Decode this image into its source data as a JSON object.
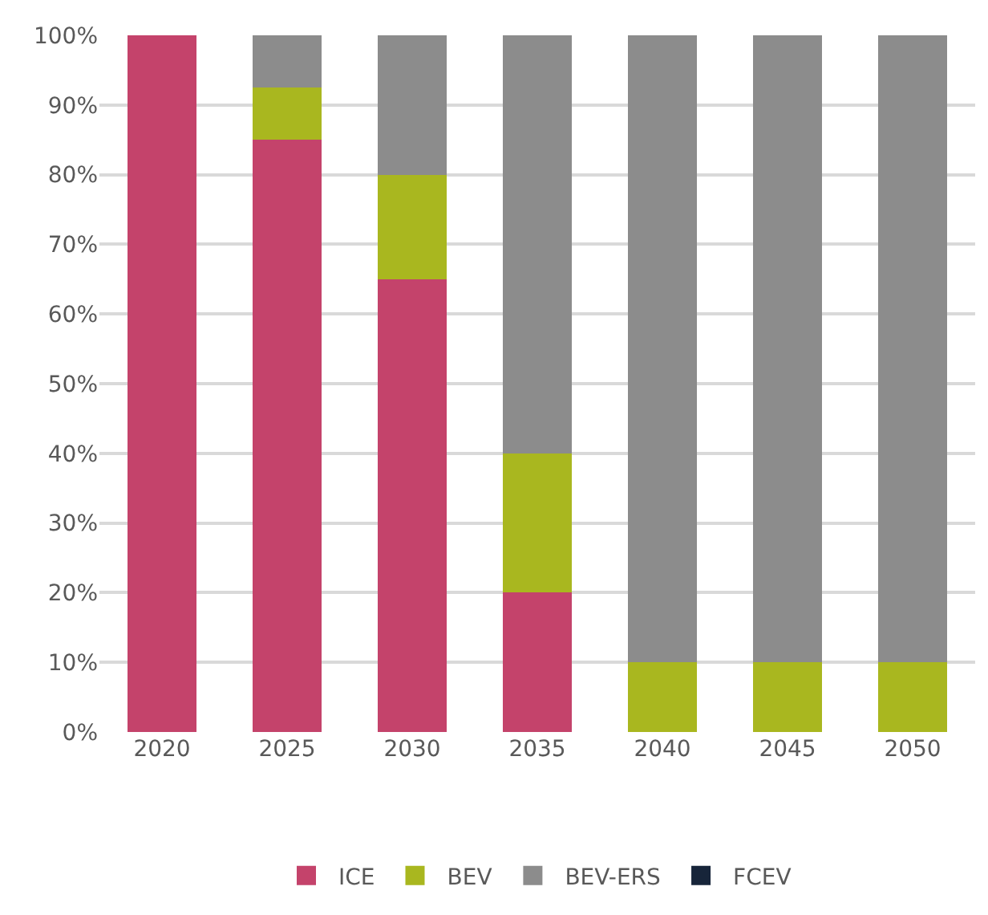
{
  "chart_data": {
    "type": "bar",
    "stacked": true,
    "categories": [
      "2020",
      "2025",
      "2030",
      "2035",
      "2040",
      "2045",
      "2050"
    ],
    "series": [
      {
        "name": "ICE",
        "color": "#c4436b",
        "values": [
          100,
          85,
          65,
          20,
          0,
          0,
          0
        ]
      },
      {
        "name": "BEV",
        "color": "#a9b71f",
        "values": [
          0,
          7.5,
          15,
          20,
          10,
          10,
          10
        ]
      },
      {
        "name": "BEV-ERS",
        "color": "#8c8c8c",
        "values": [
          0,
          7.5,
          20,
          60,
          90,
          90,
          90
        ]
      },
      {
        "name": "FCEV",
        "color": "#17253a",
        "values": [
          0,
          0,
          0,
          0,
          0,
          0,
          0
        ]
      }
    ],
    "ylim": [
      0,
      100
    ],
    "yticks": [
      {
        "value": 0,
        "label": "0%"
      },
      {
        "value": 10,
        "label": "10%"
      },
      {
        "value": 20,
        "label": "20%"
      },
      {
        "value": 30,
        "label": "30%"
      },
      {
        "value": 40,
        "label": "40%"
      },
      {
        "value": 50,
        "label": "50%"
      },
      {
        "value": 60,
        "label": "60%"
      },
      {
        "value": 70,
        "label": "70%"
      },
      {
        "value": 80,
        "label": "80%"
      },
      {
        "value": 90,
        "label": "90%"
      },
      {
        "value": 100,
        "label": "100%"
      }
    ],
    "grid": "y",
    "legend": "bottom"
  }
}
